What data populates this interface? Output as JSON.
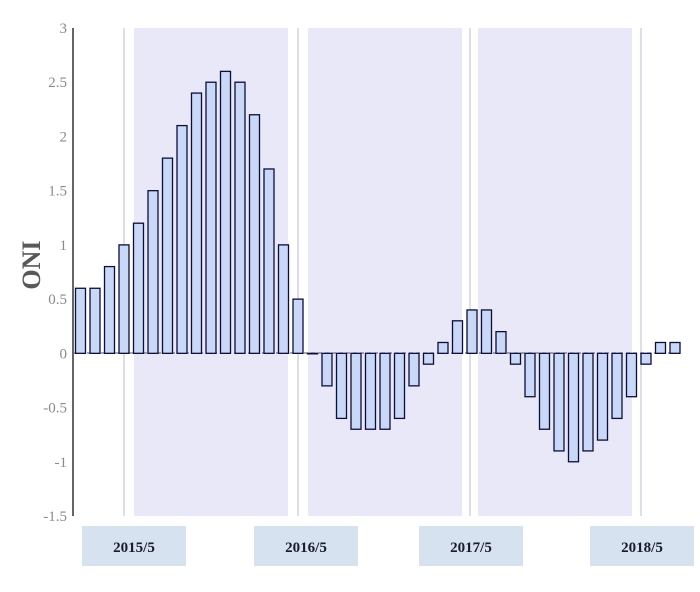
{
  "chart_data": {
    "type": "bar",
    "ylabel": "ONI",
    "ylim": [
      -1.5,
      3
    ],
    "yticks": [
      "3",
      "2.5",
      "2",
      "1.5",
      "1",
      "0.5",
      "0",
      "-0.5",
      "-1",
      "-1.5"
    ],
    "x_labels": [
      "2015/5",
      "2016/5",
      "2017/5",
      "2018/5"
    ],
    "values": [
      0.6,
      0.6,
      0.8,
      1.0,
      1.2,
      1.5,
      1.8,
      2.1,
      2.4,
      2.5,
      2.6,
      2.5,
      2.2,
      1.7,
      1.0,
      0.5,
      0.0,
      -0.3,
      -0.6,
      -0.7,
      -0.7,
      -0.7,
      -0.6,
      -0.3,
      -0.1,
      0.1,
      0.3,
      0.4,
      0.4,
      0.2,
      -0.1,
      -0.4,
      -0.7,
      -0.9,
      -1.0,
      -0.9,
      -0.8,
      -0.6,
      -0.4,
      -0.1,
      0.1,
      0.1
    ],
    "colors": {
      "bar_fill": "#c9d8f7",
      "bar_stroke": "#0d0d3a",
      "shade": "#e8e8f8",
      "tick_box": "#d6e2ef"
    }
  }
}
